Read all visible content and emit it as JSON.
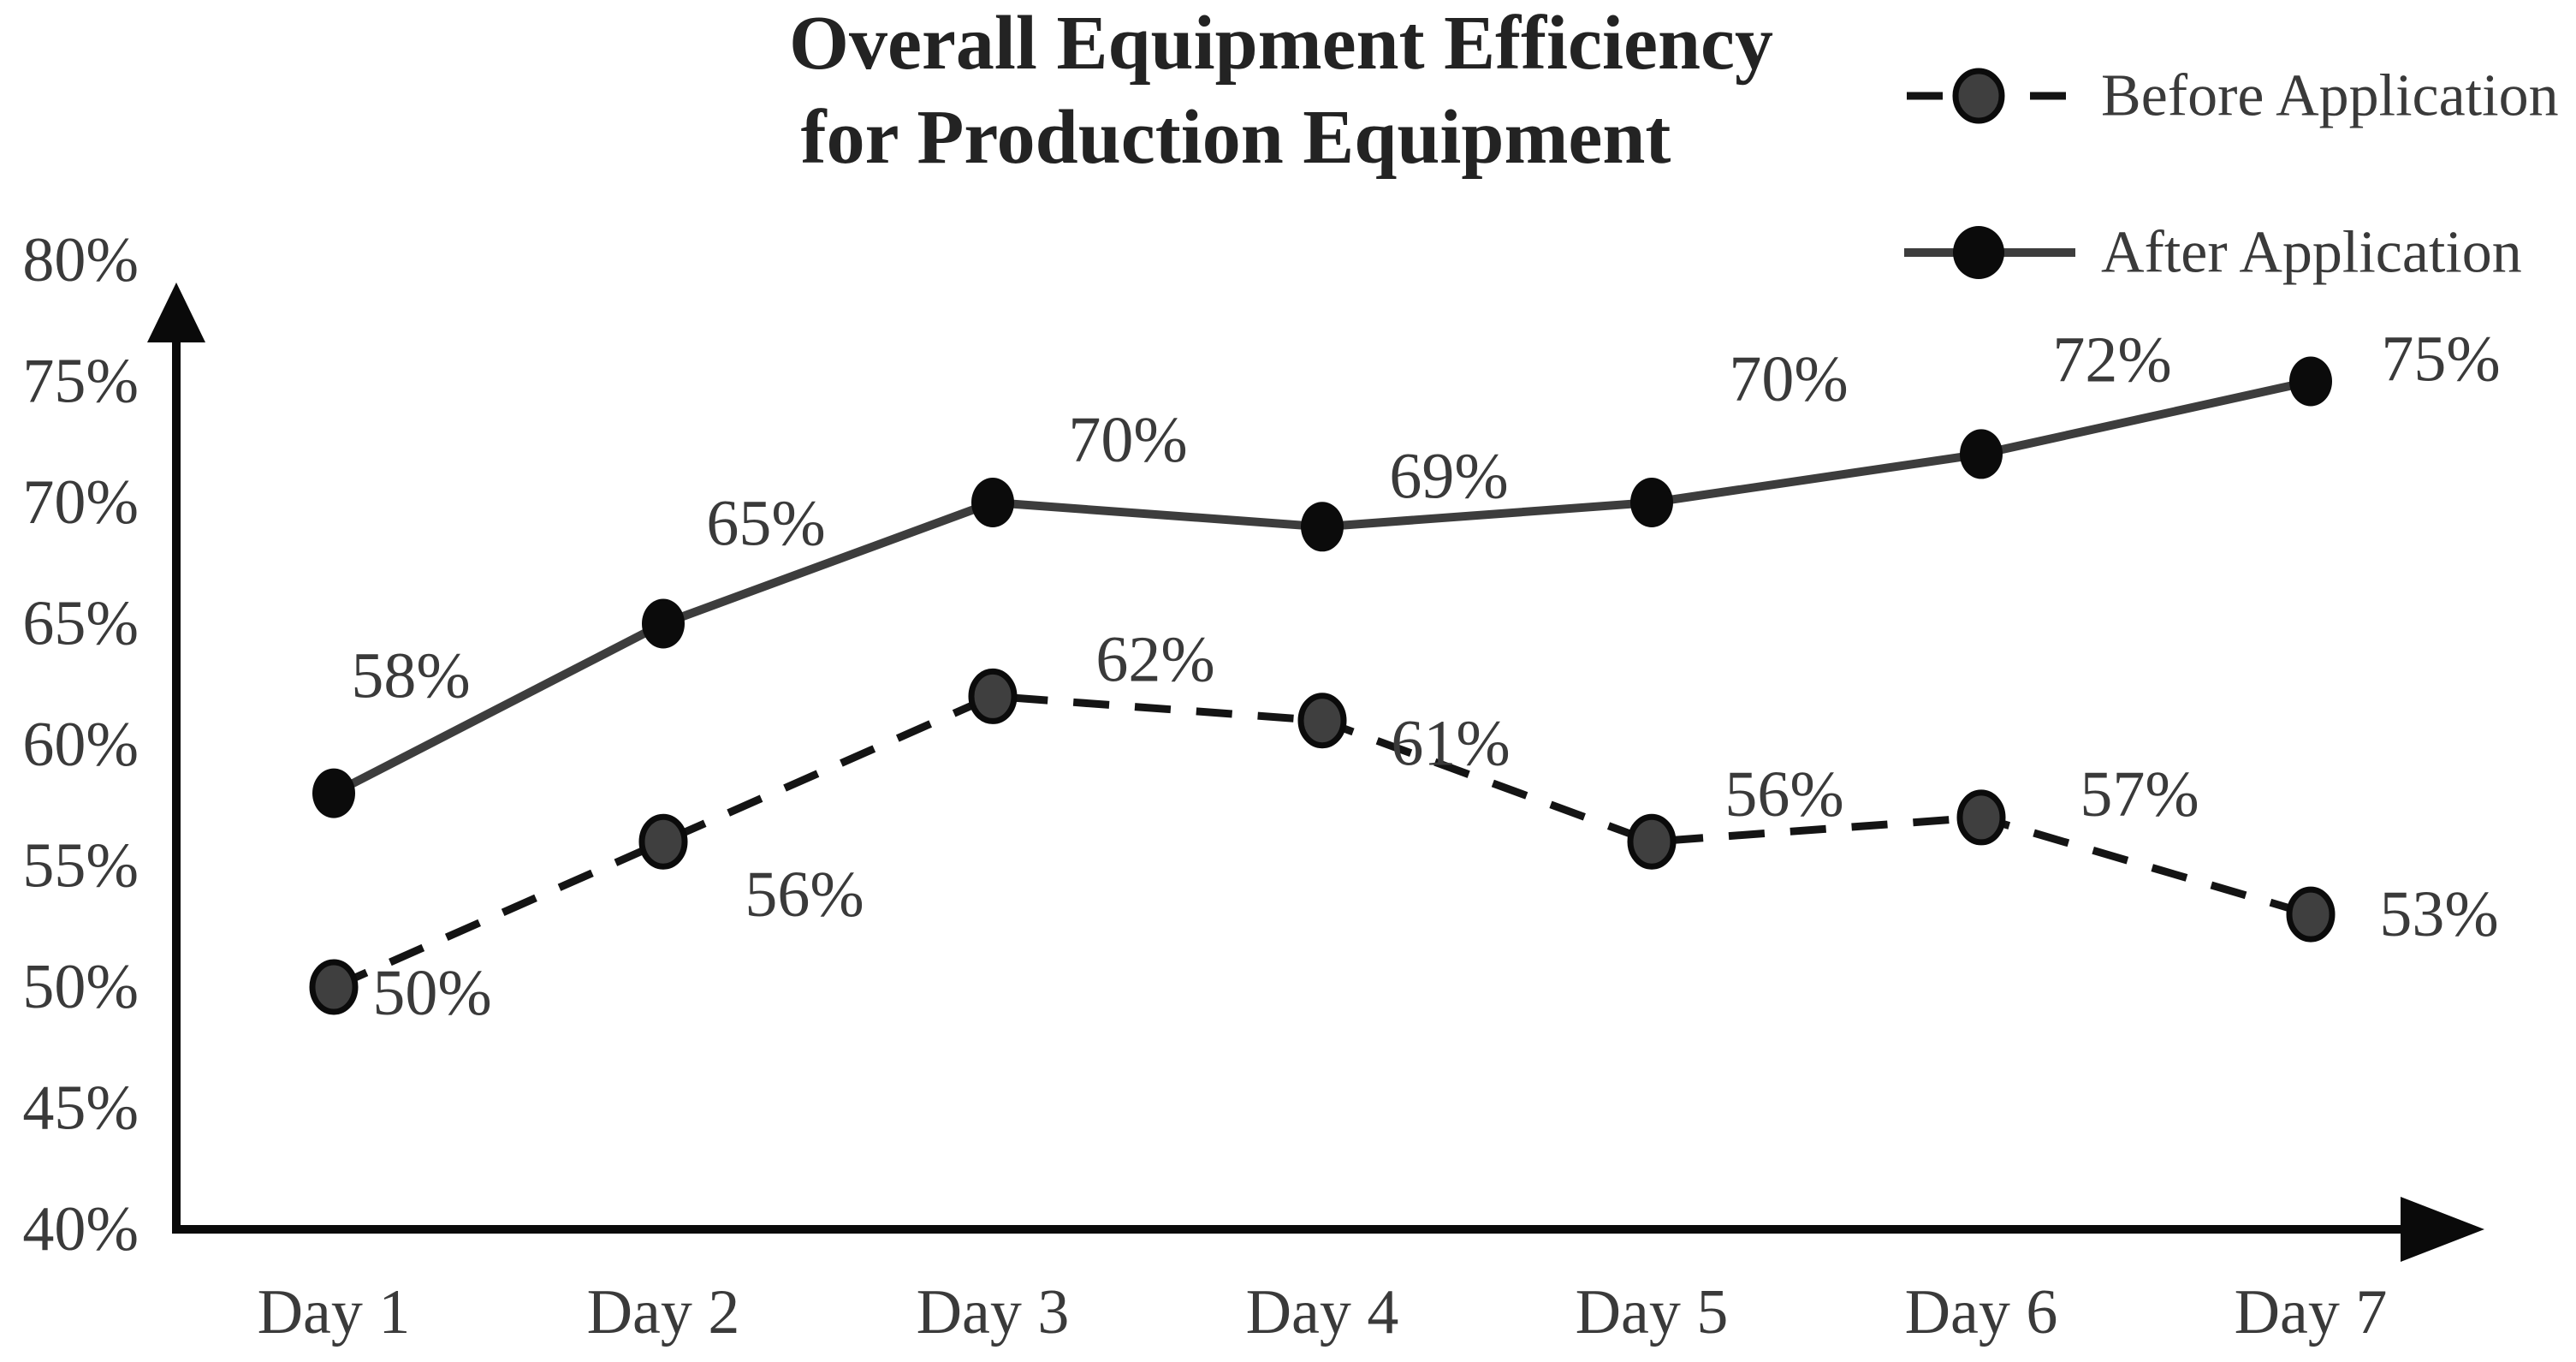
{
  "title": {
    "line1": "Overall Equipment Efficiency",
    "line2": "for Production Equipment"
  },
  "legend": {
    "items": [
      {
        "label": "Before Application",
        "style": "dashed"
      },
      {
        "label": "After Application",
        "style": "solid"
      }
    ]
  },
  "y_axis": {
    "unit": "%",
    "tick_values": [
      80,
      75,
      70,
      65,
      60,
      55,
      50,
      45,
      40
    ],
    "tick_labels": [
      "80%",
      "75%",
      "70%",
      "65%",
      "60%",
      "55%",
      "50%",
      "45%",
      "40%"
    ]
  },
  "x_axis": {
    "categories": [
      "Day 1",
      "Day 2",
      "Day 3",
      "Day 4",
      "Day 5",
      "Day 6",
      "Day 7"
    ]
  },
  "chart_data": {
    "type": "line",
    "title": "Overall Equipment Efficiency for Production Equipment",
    "categories": [
      "Day 1",
      "Day 2",
      "Day 3",
      "Day 4",
      "Day 5",
      "Day 6",
      "Day 7"
    ],
    "series": [
      {
        "name": "Before Application",
        "style": "dashed",
        "values": [
          50,
          56,
          62,
          61,
          56,
          57,
          53
        ],
        "point_labels": [
          "50%",
          "56%",
          "62%",
          "61%",
          "56%",
          "57%",
          "53%"
        ]
      },
      {
        "name": "After Application",
        "style": "solid",
        "values": [
          58,
          65,
          70,
          69,
          70,
          72,
          75
        ],
        "point_labels": [
          "58%",
          "65%",
          "70%",
          "69%",
          "70%",
          "72%",
          "75%"
        ]
      }
    ],
    "ylim": [
      40,
      80
    ],
    "y_tick_step": 5,
    "grid": false,
    "legend_position": "top-right"
  },
  "colors": {
    "background": "#ffffff",
    "title": "#232323",
    "text": "#3a3a3a",
    "axis": "#0a0a0a",
    "after_line": "#3d3d3d",
    "after_marker": "#0b0b0b",
    "before_line": "#141414",
    "before_marker_fill": "#3f3f3f",
    "before_marker_stroke": "#0b0b0b"
  }
}
